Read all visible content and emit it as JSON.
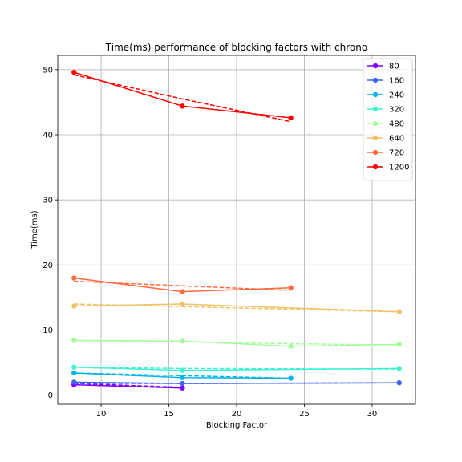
{
  "chart_data": {
    "type": "line",
    "title": "Time(ms) performance of blocking factors with chrono",
    "xlabel": "Blocking Factor",
    "ylabel": "Time(ms)",
    "xlim": [
      6.8,
      33.2
    ],
    "ylim": [
      -1.4,
      52.2
    ],
    "xticks": [
      10,
      15,
      20,
      25,
      30
    ],
    "yticks": [
      0,
      10,
      20,
      30,
      40,
      50
    ],
    "grid": true,
    "legend_position": "top-right",
    "series": [
      {
        "name": "80",
        "color": "#7f00ff",
        "x": [
          8,
          16
        ],
        "values": [
          1.6,
          1.1
        ],
        "fit": [
          1.8,
          1.2
        ]
      },
      {
        "name": "160",
        "color": "#3f62f9",
        "x": [
          8,
          16,
          32
        ],
        "values": [
          2.0,
          1.8,
          1.9
        ],
        "fit": [
          1.8,
          1.8,
          1.9
        ]
      },
      {
        "name": "240",
        "color": "#00b5eb",
        "x": [
          8,
          16,
          24
        ],
        "values": [
          3.4,
          2.7,
          2.6
        ],
        "fit": [
          3.4,
          3.0,
          2.6
        ]
      },
      {
        "name": "320",
        "color": "#3ff2d2",
        "x": [
          8,
          16,
          32
        ],
        "values": [
          4.3,
          3.8,
          4.1
        ],
        "fit": [
          4.3,
          4.1,
          4.0
        ]
      },
      {
        "name": "480",
        "color": "#a9fc9e",
        "x": [
          8,
          16,
          24,
          32
        ],
        "values": [
          8.4,
          8.3,
          7.5,
          7.8
        ],
        "fit": [
          8.4,
          8.2,
          7.9,
          7.7
        ]
      },
      {
        "name": "640",
        "color": "#f0c266",
        "x": [
          8,
          16,
          32
        ],
        "values": [
          13.7,
          14.0,
          12.8
        ],
        "fit": [
          14.0,
          13.6,
          12.8
        ]
      },
      {
        "name": "720",
        "color": "#ff6a3c",
        "x": [
          8,
          16,
          24
        ],
        "values": [
          18.0,
          15.9,
          16.5
        ],
        "fit": [
          17.5,
          16.8,
          16.1
        ]
      },
      {
        "name": "1200",
        "color": "#ff0000",
        "x": [
          8,
          16,
          24
        ],
        "values": [
          49.6,
          44.4,
          42.6
        ],
        "fit": [
          49.2,
          45.5,
          42.0
        ]
      }
    ]
  }
}
